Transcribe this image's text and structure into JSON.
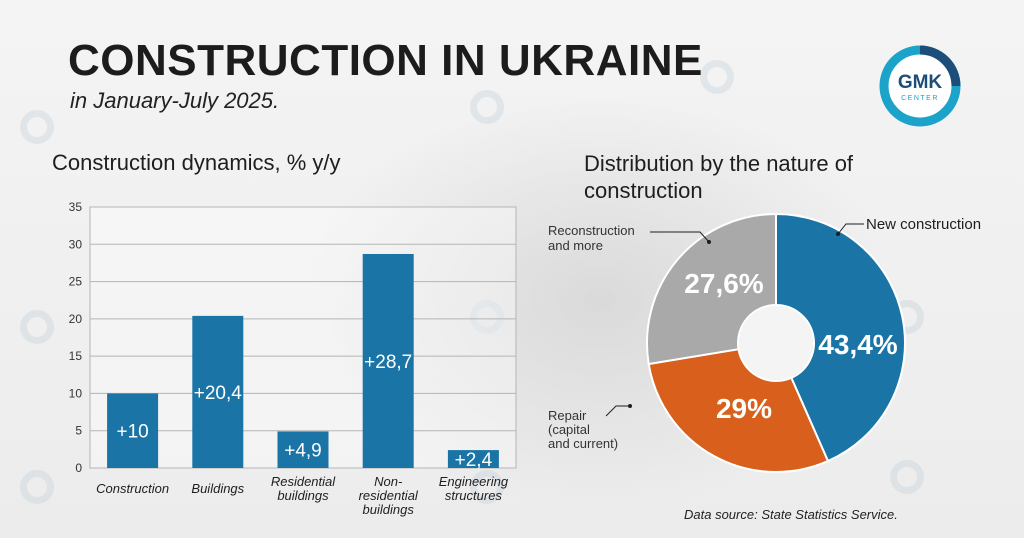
{
  "header": {
    "title": "CONSTRUCTION IN UKRAINE",
    "subtitle": "in January-July 2025."
  },
  "logo": {
    "text": "GMK",
    "subtext": "CENTER"
  },
  "footer": {
    "source": "Data source: State Statistics Service."
  },
  "colors": {
    "blue": "#1a75a6",
    "orange": "#d8601c",
    "gray": "#a9a9a9",
    "logo_teal": "#1ba3c9",
    "logo_navy": "#1d4e7a"
  },
  "chart_data": [
    {
      "type": "bar",
      "title": "Construction dynamics, % y/y",
      "categories": [
        [
          "Construction"
        ],
        [
          "Buildings"
        ],
        [
          "Residential",
          "buildings"
        ],
        [
          "Non-",
          "residential",
          "buildings"
        ],
        [
          "Engineering",
          "structures"
        ]
      ],
      "values": [
        10,
        20.4,
        4.9,
        28.7,
        2.4
      ],
      "value_labels": [
        "+10",
        "+20,4",
        "+4,9",
        "+28,7",
        "+2,4"
      ],
      "ylim": [
        0,
        35
      ],
      "yticks": [
        0,
        5,
        10,
        15,
        20,
        25,
        30,
        35
      ],
      "grid": true,
      "color": "#1a75a6"
    },
    {
      "type": "pie",
      "title": "Distribution by the nature of construction",
      "slices": [
        {
          "label": "New construction",
          "value": 43.4,
          "display": "43,4%",
          "color": "#1a75a6"
        },
        {
          "label": "Repair (capital and current)",
          "label_lines": [
            "Repair",
            "(capital",
            "and current)"
          ],
          "value": 29,
          "display": "29%",
          "color": "#d8601c"
        },
        {
          "label": "Reconstruction and more",
          "label_lines": [
            "Reconstruction",
            "and more"
          ],
          "value": 27.6,
          "display": "27,6%",
          "color": "#a9a9a9"
        }
      ],
      "donut": true
    }
  ]
}
